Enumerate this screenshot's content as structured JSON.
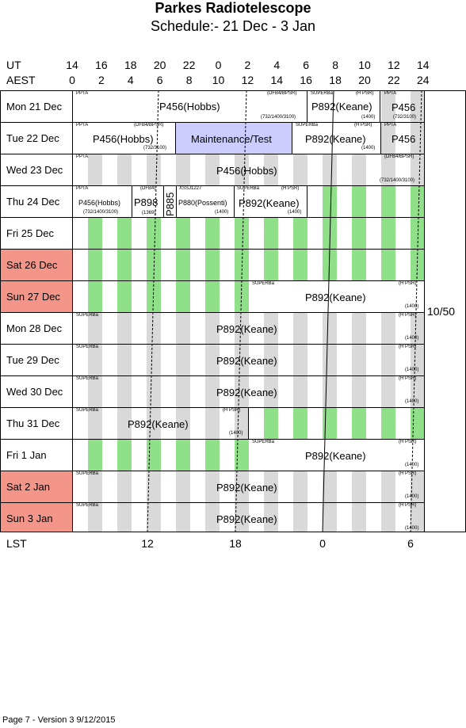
{
  "title": "Parkes Radiotelescope",
  "subtitle": "Schedule:- 21 Dec - 3  Jan",
  "header": {
    "ut_label": "UT",
    "aest_label": "AEST",
    "ut_ticks": [
      "14",
      "16",
      "18",
      "20",
      "22",
      "0",
      "2",
      "4",
      "6",
      "8",
      "10",
      "12",
      "14"
    ],
    "aest_ticks": [
      "0",
      "2",
      "4",
      "6",
      "8",
      "10",
      "12",
      "14",
      "16",
      "18",
      "20",
      "22",
      "24"
    ]
  },
  "days": [
    {
      "label": "Mon  21 Dec",
      "weekend": false
    },
    {
      "label": "Tue  22 Dec",
      "weekend": false
    },
    {
      "label": "Wed  23 Dec",
      "weekend": false
    },
    {
      "label": "Thu  24 Dec",
      "weekend": false
    },
    {
      "label": "Fri    25 Dec",
      "weekend": false
    },
    {
      "label": "Sat   26 Dec",
      "weekend": true
    },
    {
      "label": "Sun   27 Dec",
      "weekend": true
    },
    {
      "label": "Mon  28 Dec",
      "weekend": false
    },
    {
      "label": "Tue   29 Dec",
      "weekend": false
    },
    {
      "label": "Wed  30 Dec",
      "weekend": false
    },
    {
      "label": "Thu   31 Dec",
      "weekend": false
    },
    {
      "label": "Fri     1 Jan",
      "weekend": false
    },
    {
      "label": "Sat    2  Jan",
      "weekend": true
    },
    {
      "label": "Sun   3  Jan",
      "weekend": true
    }
  ],
  "blocks": {
    "p456_hobbs": "P456(Hobbs)",
    "p892_keane": "P892(Keane)",
    "p456": "P456",
    "maintenance": "Maintenance/Test",
    "p898": "P898",
    "p885": "P885",
    "p880": "P880(Possenti)",
    "pp_pta": "PPTA",
    "superb": "SUPERBa",
    "hpsr": "(H PSR)",
    "dfb4": "(DFB4)",
    "dfb4bpsr": "(DFB4/BPSR)",
    "r732_1400_3100": "(732/1400/3100)",
    "r732_3100": "(732/3100)",
    "r1400": "(1400)",
    "r1369": "(1369)",
    "xssj": "XSSJ1227"
  },
  "side_label": "10/50",
  "lst": {
    "label": "LST",
    "ticks": [
      "12",
      "18",
      "0",
      "6"
    ]
  },
  "footer": "Page 7 - Version 3  9/12/2015"
}
